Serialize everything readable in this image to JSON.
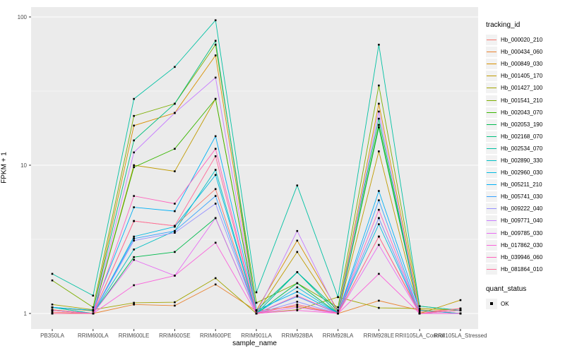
{
  "legend": {
    "tracking_title": "tracking_id",
    "quant_title": "quant_status",
    "quant_items": [
      {
        "label": "OK",
        "marker": "black-square"
      }
    ]
  },
  "chart_data": {
    "type": "line",
    "title": "",
    "xlabel": "sample_name",
    "ylabel": "FPKM + 1",
    "yscale": "log10",
    "ylim": [
      0.9,
      110
    ],
    "y_major_ticks": [
      1,
      10,
      100
    ],
    "y_minor_gridlines": [
      3.1623,
      31.623
    ],
    "grid": "white major and minor on grey panel",
    "legend_position": "right",
    "marker": "black-square",
    "panel_bg": "#EBEBEB",
    "categories": [
      "PB350LA",
      "RRIM600LA",
      "RRIM600LE",
      "RRIM600SE",
      "RRIM600PE",
      "RRIM901LA",
      "RRIM928BA",
      "RRIM928LA",
      "RRIM928LE",
      "RRII105LA_Control",
      "RRII105LA_Stressed"
    ],
    "series": [
      {
        "name": "Hb_000020_210",
        "color": "#F8766D",
        "values": [
          1.02,
          1.0,
          4.2,
          3.9,
          6.9,
          1.0,
          1.15,
          1.0,
          3.3,
          1.02,
          1.08
        ]
      },
      {
        "name": "Hb_000434_060",
        "color": "#EA8331",
        "values": [
          1.06,
          1.0,
          1.15,
          1.13,
          1.57,
          1.04,
          1.12,
          1.0,
          1.22,
          1.05,
          1.0
        ]
      },
      {
        "name": "Hb_000849_030",
        "color": "#D89000",
        "values": [
          1.1,
          1.04,
          18.5,
          22.5,
          55,
          1.05,
          3.1,
          1.04,
          26,
          1.06,
          1.0
        ]
      },
      {
        "name": "Hb_001405_170",
        "color": "#C09B00",
        "values": [
          1.05,
          1.0,
          10,
          9.1,
          28,
          1.0,
          2.6,
          1.0,
          12.4,
          1.0,
          1.23
        ]
      },
      {
        "name": "Hb_001427_100",
        "color": "#A3A500",
        "values": [
          1.15,
          1.06,
          1.18,
          1.19,
          1.73,
          1.0,
          1.06,
          1.29,
          1.09,
          1.08,
          1.05
        ]
      },
      {
        "name": "Hb_001541_210",
        "color": "#7CAE00",
        "values": [
          1.67,
          1.1,
          21.5,
          26,
          65,
          1.18,
          1.6,
          1.1,
          34.5,
          1.12,
          1.05
        ]
      },
      {
        "name": "Hb_002043_070",
        "color": "#39B600",
        "values": [
          1.1,
          1.0,
          9.7,
          12.9,
          28,
          1.0,
          1.9,
          1.0,
          18.7,
          1.0,
          1.0
        ]
      },
      {
        "name": "Hb_002053_190",
        "color": "#00BB4E",
        "values": [
          1.05,
          1.0,
          2.4,
          2.6,
          4.4,
          1.0,
          1.6,
          1.0,
          18.0,
          1.0,
          1.0
        ]
      },
      {
        "name": "Hb_002168_070",
        "color": "#00BF7D",
        "values": [
          1.1,
          1.05,
          14.7,
          26,
          69,
          1.05,
          1.9,
          1.05,
          20.6,
          1.0,
          1.05
        ]
      },
      {
        "name": "Hb_002534_070",
        "color": "#00C1A3",
        "values": [
          1.85,
          1.32,
          28,
          46,
          95,
          1.39,
          7.3,
          1.29,
          65,
          1.12,
          1.05
        ]
      },
      {
        "name": "Hb_002890_330",
        "color": "#00BFC4",
        "values": [
          1.1,
          1.0,
          2.7,
          3.6,
          9.3,
          1.0,
          1.9,
          1.0,
          4.4,
          1.0,
          1.0
        ]
      },
      {
        "name": "Hb_002960_030",
        "color": "#00BAE0",
        "values": [
          1.05,
          1.0,
          3.3,
          3.85,
          8.6,
          1.0,
          1.5,
          1.0,
          4.0,
          1.0,
          1.0
        ]
      },
      {
        "name": "Hb_005211_210",
        "color": "#00B0F6",
        "values": [
          1.1,
          1.05,
          5.2,
          4.9,
          15.7,
          1.05,
          1.4,
          1.0,
          6.7,
          1.05,
          1.0
        ]
      },
      {
        "name": "Hb_005741_030",
        "color": "#35A2FF",
        "values": [
          1.05,
          1.0,
          3.2,
          3.6,
          6.2,
          1.0,
          1.3,
          1.0,
          5.8,
          1.0,
          1.0
        ]
      },
      {
        "name": "Hb_009222_040",
        "color": "#9590FF",
        "values": [
          1.0,
          1.0,
          3.1,
          3.5,
          5.5,
          1.0,
          1.2,
          1.0,
          4.4,
          1.0,
          1.0
        ]
      },
      {
        "name": "Hb_009771_040",
        "color": "#C77CFF",
        "values": [
          1.05,
          1.0,
          12.2,
          22.5,
          39,
          1.0,
          3.6,
          1.0,
          23,
          1.0,
          1.0
        ]
      },
      {
        "name": "Hb_009785_030",
        "color": "#E76BF3",
        "values": [
          1.0,
          1.0,
          2.3,
          1.8,
          4.4,
          1.0,
          1.1,
          1.0,
          2.9,
          1.0,
          1.0
        ]
      },
      {
        "name": "Hb_017862_030",
        "color": "#FA62DB",
        "values": [
          1.0,
          1.0,
          1.55,
          1.8,
          3.0,
          1.0,
          1.05,
          1.0,
          1.85,
          1.0,
          1.0
        ]
      },
      {
        "name": "Hb_039946_060",
        "color": "#FF62BC",
        "values": [
          1.05,
          1.0,
          6.2,
          5.5,
          12.9,
          1.0,
          1.32,
          1.0,
          5.0,
          1.0,
          1.05
        ]
      },
      {
        "name": "Hb_081864_010",
        "color": "#FF6A98",
        "values": [
          1.0,
          1.0,
          4.2,
          3.9,
          11.5,
          1.0,
          1.15,
          1.0,
          3.3,
          1.0,
          1.08
        ]
      }
    ]
  }
}
